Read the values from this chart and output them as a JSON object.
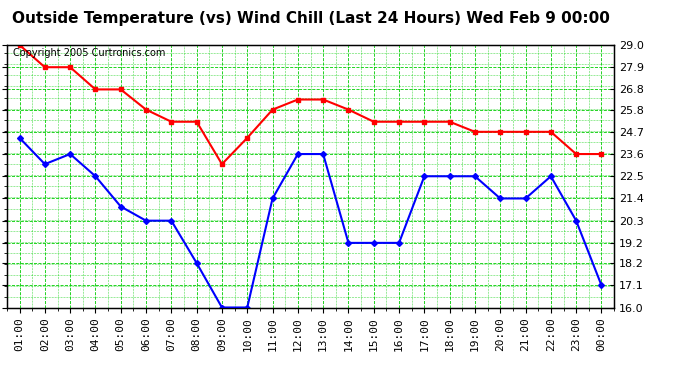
{
  "title": "Outside Temperature (vs) Wind Chill (Last 24 Hours) Wed Feb 9 00:00",
  "copyright": "Copyright 2005 Curtronics.com",
  "x_labels": [
    "01:00",
    "02:00",
    "03:00",
    "04:00",
    "05:00",
    "06:00",
    "07:00",
    "08:00",
    "09:00",
    "10:00",
    "11:00",
    "12:00",
    "13:00",
    "14:00",
    "15:00",
    "16:00",
    "17:00",
    "18:00",
    "19:00",
    "20:00",
    "21:00",
    "22:00",
    "23:00",
    "00:00"
  ],
  "outside_temp": [
    29.0,
    27.9,
    27.9,
    26.8,
    26.8,
    25.8,
    25.2,
    25.2,
    23.1,
    24.4,
    25.8,
    26.3,
    26.3,
    25.8,
    25.2,
    25.2,
    25.2,
    25.2,
    24.7,
    24.7,
    24.7,
    24.7,
    23.6,
    23.6
  ],
  "wind_chill": [
    24.4,
    23.1,
    23.6,
    22.5,
    21.0,
    20.3,
    20.3,
    18.2,
    16.0,
    16.0,
    21.4,
    23.6,
    23.6,
    19.2,
    19.2,
    19.2,
    22.5,
    22.5,
    22.5,
    21.4,
    21.4,
    22.5,
    20.3,
    17.1
  ],
  "temp_color": "#ff0000",
  "chill_color": "#0000ff",
  "bg_color": "#ffffff",
  "plot_bg": "#ffffff",
  "grid_color": "#00cc00",
  "ylim_min": 16.0,
  "ylim_max": 29.0,
  "yticks": [
    16.0,
    17.1,
    18.2,
    19.2,
    20.3,
    21.4,
    22.5,
    23.6,
    24.7,
    25.8,
    26.8,
    27.9,
    29.0
  ],
  "title_fontsize": 11,
  "tick_fontsize": 8,
  "copyright_fontsize": 7
}
